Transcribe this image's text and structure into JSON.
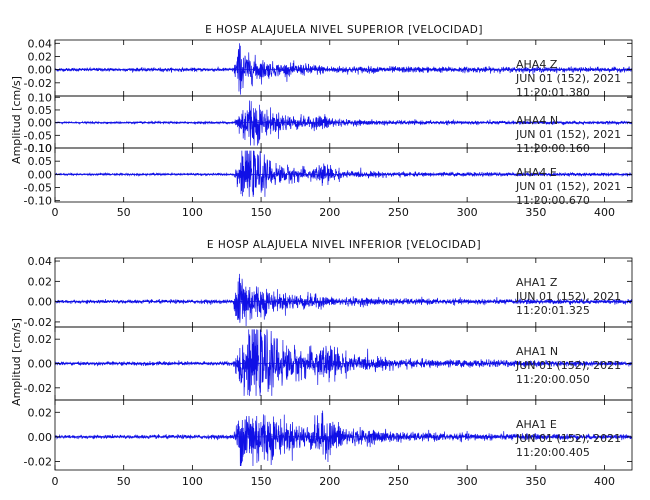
{
  "colors": {
    "trace": "#1010e6",
    "axes": "#000000",
    "background": "#ffffff"
  },
  "chart_data": [
    {
      "type": "line",
      "title": "E HOSP ALAJUELA NIVEL SUPERIOR [VELOCIDAD]",
      "ylabel": "Amplitud [cm/s]",
      "xlim": [
        0,
        420
      ],
      "x_ticks": [
        "0",
        "50",
        "100",
        "150",
        "200",
        "250",
        "300",
        "350",
        "400"
      ],
      "x_tick_values": [
        0,
        50,
        100,
        150,
        200,
        250,
        300,
        350,
        400
      ],
      "grid": false,
      "series": [
        {
          "station": "AHA4",
          "component": "Z",
          "date": "JUN 01 (152), 2021",
          "time": "11:20:01.380",
          "ylim": [
            -0.04,
            0.045
          ],
          "y_ticks": [
            "0.04",
            "0.02",
            "0.00",
            "-0.02"
          ],
          "y_tick_values": [
            0.04,
            0.02,
            0.0,
            -0.02
          ],
          "noise": 0.0022,
          "peak": 0.04,
          "envelope": [
            [
              0,
              0.0022
            ],
            [
              130,
              0.0025
            ],
            [
              134,
              0.04
            ],
            [
              140,
              0.02
            ],
            [
              160,
              0.009
            ],
            [
              190,
              0.007
            ],
            [
              200,
              0.005
            ],
            [
              260,
              0.004
            ],
            [
              420,
              0.003
            ]
          ]
        },
        {
          "station": "AHA4",
          "component": "N",
          "date": "JUN 01 (152), 2021",
          "time": "11:20:00.160",
          "ylim": [
            -0.1,
            0.105
          ],
          "y_ticks": [
            "0.10",
            "0.05",
            "0.00",
            "-0.05",
            "-0.10"
          ],
          "y_tick_values": [
            0.1,
            0.05,
            0.0,
            -0.05,
            -0.1
          ],
          "noise": 0.003,
          "peak": 0.095,
          "envelope": [
            [
              0,
              0.003
            ],
            [
              130,
              0.004
            ],
            [
              136,
              0.06
            ],
            [
              142,
              0.095
            ],
            [
              155,
              0.04
            ],
            [
              185,
              0.018
            ],
            [
              195,
              0.03
            ],
            [
              210,
              0.01
            ],
            [
              260,
              0.007
            ],
            [
              420,
              0.005
            ]
          ]
        },
        {
          "station": "AHA4",
          "component": "E",
          "date": "JUN 01 (152), 2021",
          "time": "11:20:00.670",
          "ylim": [
            -0.105,
            0.1
          ],
          "y_ticks": [
            "0.10",
            "0.05",
            "0.00",
            "-0.05",
            "-0.10"
          ],
          "y_tick_values": [
            0.1,
            0.05,
            0.0,
            -0.05,
            -0.1
          ],
          "noise": 0.003,
          "peak": 0.09,
          "envelope": [
            [
              0,
              0.003
            ],
            [
              130,
              0.004
            ],
            [
              135,
              0.07
            ],
            [
              142,
              0.09
            ],
            [
              160,
              0.035
            ],
            [
              185,
              0.018
            ],
            [
              194,
              0.04
            ],
            [
              210,
              0.012
            ],
            [
              260,
              0.007
            ],
            [
              420,
              0.005
            ]
          ]
        }
      ]
    },
    {
      "type": "line",
      "title": "E HOSP ALAJUELA NIVEL INFERIOR [VELOCIDAD]",
      "ylabel": "Amplitud [cm/s]",
      "xlim": [
        0,
        420
      ],
      "x_ticks": [
        "0",
        "50",
        "100",
        "150",
        "200",
        "250",
        "300",
        "350",
        "400"
      ],
      "x_tick_values": [
        0,
        50,
        100,
        150,
        200,
        250,
        300,
        350,
        400
      ],
      "grid": false,
      "series": [
        {
          "station": "AHA1",
          "component": "Z",
          "date": "JUN 01 (152), 2021",
          "time": "11:20:01.325",
          "ylim": [
            -0.025,
            0.043
          ],
          "y_ticks": [
            "0.04",
            "0.02",
            "0.00",
            "-0.02"
          ],
          "y_tick_values": [
            0.04,
            0.02,
            0.0,
            -0.02
          ],
          "noise": 0.0014,
          "peak": 0.04,
          "envelope": [
            [
              0,
              0.0014
            ],
            [
              130,
              0.0018
            ],
            [
              134,
              0.04
            ],
            [
              140,
              0.02
            ],
            [
              160,
              0.008
            ],
            [
              190,
              0.006
            ],
            [
              200,
              0.004
            ],
            [
              260,
              0.0025
            ],
            [
              420,
              0.0018
            ]
          ]
        },
        {
          "station": "AHA1",
          "component": "N",
          "date": "JUN 01 (152), 2021",
          "time": "11:20:00.050",
          "ylim": [
            -0.03,
            0.03
          ],
          "y_ticks": [
            "0.02",
            "0.00",
            "-0.02"
          ],
          "y_tick_values": [
            0.02,
            0.0,
            -0.02
          ],
          "noise": 0.0012,
          "peak": 0.028,
          "envelope": [
            [
              0,
              0.0012
            ],
            [
              130,
              0.0015
            ],
            [
              134,
              0.02
            ],
            [
              145,
              0.028
            ],
            [
              170,
              0.013
            ],
            [
              185,
              0.009
            ],
            [
              195,
              0.016
            ],
            [
              215,
              0.006
            ],
            [
              260,
              0.003
            ],
            [
              420,
              0.0015
            ]
          ]
        },
        {
          "station": "AHA1",
          "component": "E",
          "date": "JUN 01 (152), 2021",
          "time": "11:20:00.405",
          "ylim": [
            -0.027,
            0.03
          ],
          "y_ticks": [
            "0.02",
            "0.00",
            "-0.02"
          ],
          "y_tick_values": [
            0.02,
            0.0,
            -0.02
          ],
          "noise": 0.0012,
          "peak": 0.025,
          "envelope": [
            [
              0,
              0.0012
            ],
            [
              130,
              0.0015
            ],
            [
              135,
              0.022
            ],
            [
              142,
              0.025
            ],
            [
              165,
              0.012
            ],
            [
              185,
              0.008
            ],
            [
              194,
              0.016
            ],
            [
              215,
              0.006
            ],
            [
              260,
              0.003
            ],
            [
              420,
              0.0015
            ]
          ]
        }
      ]
    }
  ]
}
